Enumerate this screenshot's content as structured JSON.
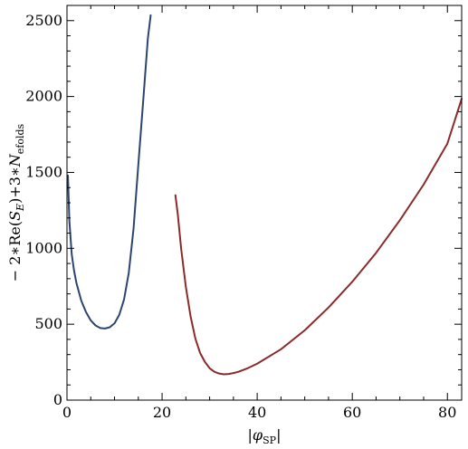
{
  "chart_data": {
    "type": "line",
    "title": "",
    "xlabel": "|φ_SP|",
    "xlabel_parts": {
      "open": "|",
      "var": "φ",
      "sub": "SP",
      "close": "|"
    },
    "ylabel": "−2∗Re(S_E)+3∗N_efolds",
    "ylabel_parts": {
      "pre": "− 2∗Re(",
      "var": "S",
      "var_sub": "E",
      "mid": ")+3∗",
      "var2": "N",
      "var2_sub": "efolds"
    },
    "xlim": [
      0,
      83
    ],
    "ylim": [
      0,
      2600
    ],
    "xticks": [
      0,
      20,
      40,
      60,
      80
    ],
    "xtick_labels": [
      "0",
      "20",
      "40",
      "60",
      "80"
    ],
    "yticks": [
      0,
      500,
      1000,
      1500,
      2000,
      2500
    ],
    "ytick_labels": [
      "0",
      "500",
      "1000",
      "1500",
      "2000",
      "2500"
    ],
    "grid": false,
    "series": [
      {
        "color": "#2c4470",
        "x": [
          0.2,
          0.5,
          1,
          1.5,
          2,
          3,
          4,
          5,
          6,
          7,
          8,
          9,
          10,
          11,
          12,
          13,
          14,
          15,
          16,
          17,
          17.6
        ],
        "y": [
          1480,
          1180,
          960,
          850,
          770,
          655,
          580,
          525,
          492,
          475,
          472,
          480,
          506,
          562,
          663,
          840,
          1130,
          1550,
          1960,
          2380,
          2535
        ]
      },
      {
        "color": "#8c2a2a",
        "x": [
          22.8,
          23.3,
          24,
          25,
          26,
          27,
          28,
          29,
          30,
          31,
          32,
          33,
          34,
          35,
          36,
          38,
          40,
          45,
          50,
          55,
          60,
          65,
          70,
          75,
          80,
          83
        ],
        "y": [
          1350,
          1225,
          1000,
          745,
          550,
          405,
          310,
          252,
          210,
          187,
          175,
          170,
          172,
          178,
          186,
          210,
          240,
          335,
          460,
          610,
          780,
          970,
          1185,
          1420,
          1690,
          1985
        ]
      }
    ]
  }
}
